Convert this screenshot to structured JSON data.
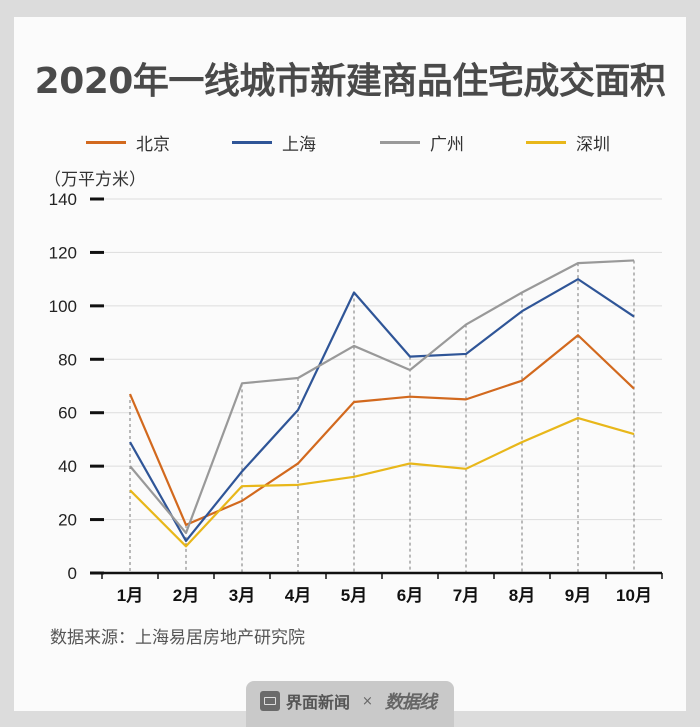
{
  "title": "2020年一线城市新建商品住宅成交面积",
  "unit_label": "（万平方米）",
  "source_label": "数据来源：上海易居房地产研究院",
  "footer": {
    "brand1": "界面新闻",
    "separator": "×",
    "brand2": "数据线"
  },
  "legend": [
    {
      "name": "北京",
      "color": "#d2691e"
    },
    {
      "name": "上海",
      "color": "#2f5597"
    },
    {
      "name": "广州",
      "color": "#999999"
    },
    {
      "name": "深圳",
      "color": "#e8b71a"
    }
  ],
  "chart_data": {
    "type": "line",
    "title": "2020年一线城市新建商品住宅成交面积",
    "xlabel": "",
    "ylabel": "（万平方米）",
    "categories": [
      "1月",
      "2月",
      "3月",
      "4月",
      "5月",
      "6月",
      "7月",
      "8月",
      "9月",
      "10月"
    ],
    "series": [
      {
        "name": "北京",
        "color": "#d2691e",
        "values": [
          67,
          18,
          27,
          41,
          64,
          66,
          65,
          72,
          89,
          69
        ]
      },
      {
        "name": "上海",
        "color": "#2f5597",
        "values": [
          49,
          12,
          38,
          61,
          105,
          81,
          82,
          98,
          110,
          96
        ]
      },
      {
        "name": "广州",
        "color": "#999999",
        "values": [
          40,
          15,
          71,
          73,
          85,
          76,
          93,
          105,
          116,
          117
        ]
      },
      {
        "name": "深圳",
        "color": "#e8b71a",
        "values": [
          31,
          10,
          32.5,
          33,
          36,
          41,
          39,
          49,
          58,
          52
        ]
      }
    ],
    "yticks": [
      0,
      20,
      40,
      60,
      80,
      100,
      120,
      140
    ],
    "ylim": [
      0,
      140
    ],
    "grid": true,
    "legend_position": "top"
  }
}
